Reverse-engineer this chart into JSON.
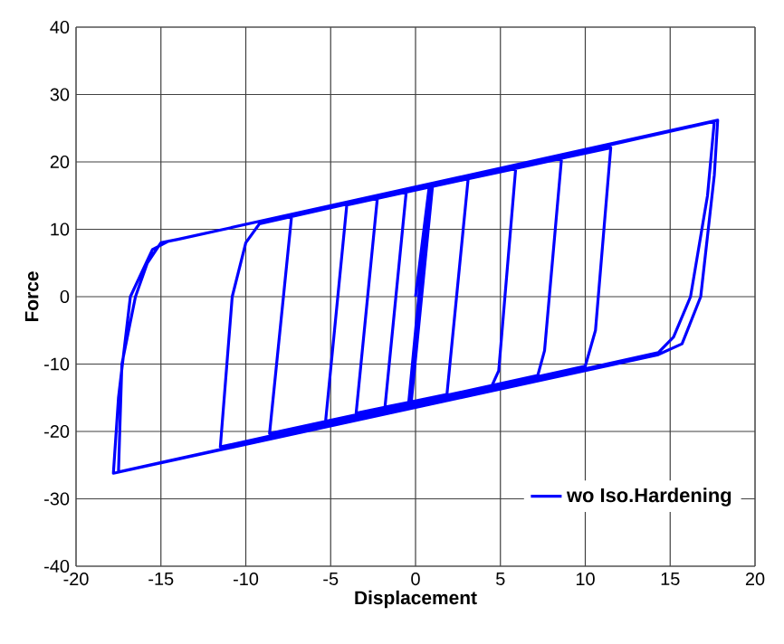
{
  "chart_data": {
    "type": "line",
    "xlabel": "Displacement",
    "ylabel": "Force",
    "series": [
      {
        "name": "wo Iso.Hardening",
        "color": "#0000ff",
        "x": [
          0,
          0.8,
          -0.4,
          0.85,
          1.0,
          -0.25,
          -1.8,
          -0.55,
          3.1,
          1.85,
          -3.5,
          -2.25,
          5.9,
          4.9,
          4.5,
          -5.3,
          -4.05,
          8.6,
          7.6,
          7.2,
          -8.6,
          -7.3,
          11.5,
          10.6,
          10.0,
          -11.5,
          -10.8,
          -10.0,
          -9.2,
          17.6,
          17.2,
          16.2,
          15.2,
          14.3,
          -17.5,
          -17.3,
          -16.5,
          -15.8,
          -15.0,
          -14.0,
          17.8,
          17.6,
          16.8,
          15.7,
          14.3,
          -17.8,
          -17.5,
          -16.8,
          -15.5,
          -14.5
        ],
        "values": [
          0,
          16.2,
          -15.7,
          16.3,
          16.4,
          -15.6,
          -16.4,
          15.5,
          17.5,
          -14.5,
          -17.3,
          14.6,
          19.0,
          -11,
          -13.2,
          -18.5,
          13.6,
          20.5,
          -8,
          -11.7,
          -20.3,
          12.0,
          22.1,
          -5,
          -10.3,
          -22.3,
          0,
          8,
          10.8,
          26.0,
          15,
          0,
          -6,
          -8.3,
          -26.0,
          -10,
          0,
          5,
          8,
          8.5,
          26.2,
          18,
          0,
          -7,
          -8.6,
          -26.2,
          -15,
          0,
          7,
          8.3
        ]
      }
    ],
    "xlim": [
      -20,
      20
    ],
    "xticks": [
      -20,
      -15,
      -10,
      -5,
      0,
      5,
      10,
      15,
      20
    ],
    "ylim": [
      -40,
      40
    ],
    "yticks": [
      -40,
      -30,
      -20,
      -10,
      0,
      10,
      20,
      30,
      40
    ],
    "grid": true,
    "legend": "bottom right",
    "marker": "none",
    "line_style": "solid"
  }
}
